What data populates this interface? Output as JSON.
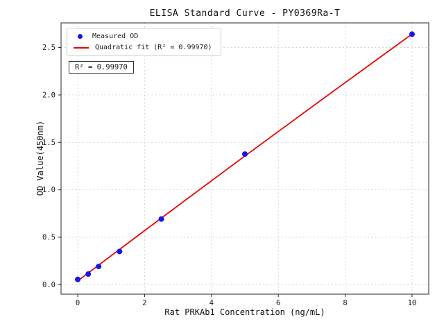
{
  "chart_data": {
    "type": "scatter",
    "title": "ELISA Standard Curve - PY0369Ra-T",
    "xlabel": "Rat PRKAb1 Concentration (ng/mL)",
    "ylabel": "OD Value(450nm)",
    "xlim": [
      -0.5,
      10.5
    ],
    "ylim": [
      -0.1,
      2.76
    ],
    "xtick_values": [
      0,
      2,
      4,
      6,
      8,
      10
    ],
    "xtick_labels": [
      "0",
      "2",
      "4",
      "6",
      "8",
      "10"
    ],
    "ytick_values": [
      0.0,
      0.5,
      1.0,
      1.5,
      2.0,
      2.5
    ],
    "ytick_labels": [
      "0.0",
      "0.5",
      "1.0",
      "1.5",
      "2.0",
      "2.5"
    ],
    "grid": true,
    "legend_position": "upper-left",
    "annotation": "R² = 0.99970",
    "series": [
      {
        "name": "Measured OD",
        "type": "scatter",
        "color": "#1616e8",
        "x": [
          0,
          0.3125,
          0.625,
          1.25,
          2.5,
          5,
          10
        ],
        "y": [
          0.055,
          0.112,
          0.192,
          0.35,
          0.692,
          1.377,
          2.641
        ]
      },
      {
        "name": "Quadratic fit (R² = 0.99970)",
        "type": "line",
        "color": "#ee0000",
        "x": [
          0,
          1.25,
          2.5,
          5,
          7.5,
          10
        ],
        "y": [
          0.04,
          0.372,
          0.702,
          1.357,
          2.002,
          2.642
        ]
      }
    ]
  }
}
